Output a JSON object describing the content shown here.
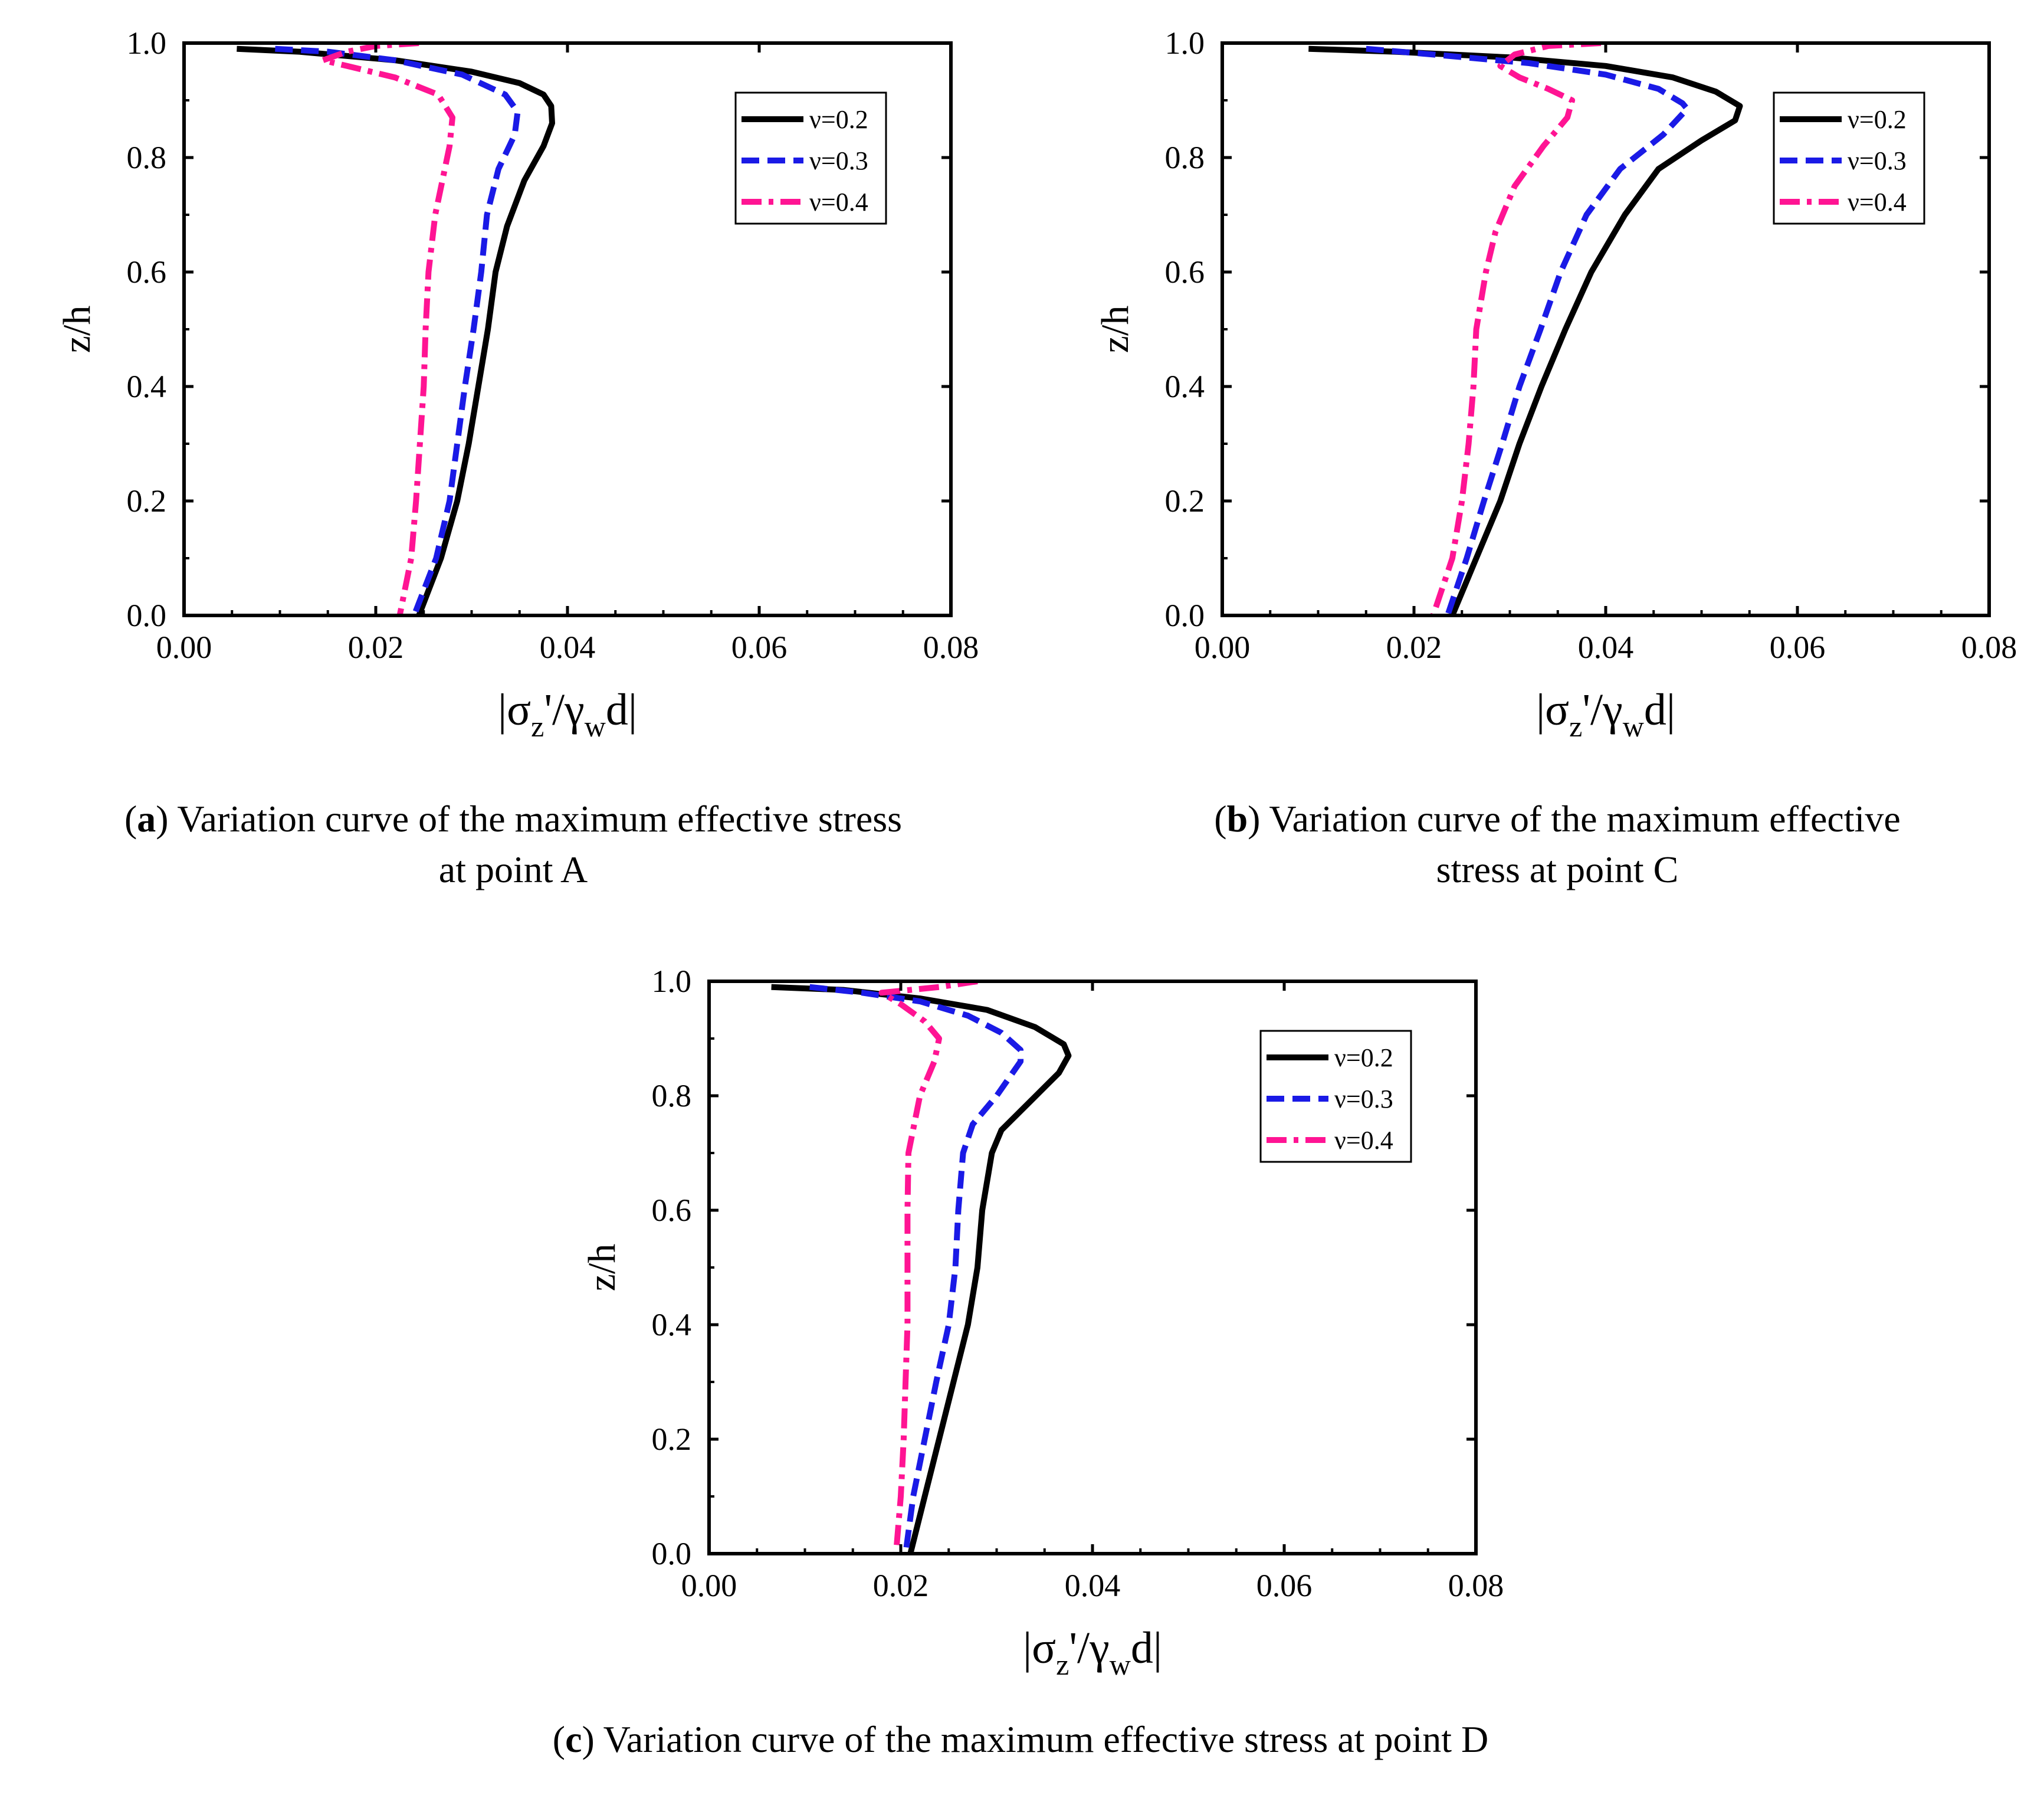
{
  "figure": {
    "captions": [
      {
        "letter": "a",
        "lines": [
          ") Variation curve of the maximum effective stress",
          "at point A"
        ]
      },
      {
        "letter": "b",
        "lines": [
          ") Variation curve of the maximum effective",
          "stress at point C"
        ]
      },
      {
        "letter": "c",
        "lines": [
          ") Variation curve of the maximum effective stress at point D"
        ]
      }
    ]
  },
  "colors": {
    "v02": "#000000",
    "v03": "#1a1ae6",
    "v04": "#ff1493"
  },
  "chart_data": [
    {
      "id": "a",
      "type": "line",
      "ylabel": "z/h",
      "xlabel": {
        "abs_bar": "|",
        "sigma": "σ",
        "sub_z": "z",
        "prime_slash": "'/",
        "gamma": "γ",
        "sub_w": "w",
        "d": "d"
      },
      "xlim": [
        0,
        0.08
      ],
      "ylim": [
        0,
        1.0
      ],
      "xticks": [
        "0.00",
        "0.02",
        "0.04",
        "0.06",
        "0.08"
      ],
      "yticks": [
        "0.0",
        "0.2",
        "0.4",
        "0.6",
        "0.8",
        "1.0"
      ],
      "legend_position": "top-right",
      "series": [
        {
          "name": "ν=0.2",
          "style": "solid",
          "points": [
            [
              0.0055,
              0.99
            ],
            [
              0.012,
              0.985
            ],
            [
              0.022,
              0.97
            ],
            [
              0.03,
              0.95
            ],
            [
              0.035,
              0.93
            ],
            [
              0.0375,
              0.91
            ],
            [
              0.0383,
              0.89
            ],
            [
              0.0384,
              0.86
            ],
            [
              0.0375,
              0.82
            ],
            [
              0.0355,
              0.76
            ],
            [
              0.0337,
              0.68
            ],
            [
              0.0325,
              0.6
            ],
            [
              0.0317,
              0.5
            ],
            [
              0.0307,
              0.4
            ],
            [
              0.0297,
              0.3
            ],
            [
              0.0285,
              0.2
            ],
            [
              0.0268,
              0.1
            ],
            [
              0.0245,
              0.0
            ]
          ]
        },
        {
          "name": "ν=0.3",
          "style": "dashed",
          "points": [
            [
              0.0095,
              0.99
            ],
            [
              0.015,
              0.985
            ],
            [
              0.022,
              0.97
            ],
            [
              0.029,
              0.945
            ],
            [
              0.0335,
              0.91
            ],
            [
              0.0348,
              0.88
            ],
            [
              0.0345,
              0.84
            ],
            [
              0.0328,
              0.78
            ],
            [
              0.0316,
              0.7
            ],
            [
              0.031,
              0.6
            ],
            [
              0.0302,
              0.5
            ],
            [
              0.0293,
              0.4
            ],
            [
              0.0285,
              0.3
            ],
            [
              0.0277,
              0.2
            ],
            [
              0.0263,
              0.1
            ],
            [
              0.024,
              0.0
            ]
          ]
        },
        {
          "name": "ν=0.4",
          "style": "dashdot",
          "points": [
            [
              0.0245,
              1.0
            ],
            [
              0.02,
              0.995
            ],
            [
              0.017,
              0.985
            ],
            [
              0.0145,
              0.97
            ],
            [
              0.017,
              0.96
            ],
            [
              0.022,
              0.94
            ],
            [
              0.0265,
              0.91
            ],
            [
              0.028,
              0.87
            ],
            [
              0.0277,
              0.82
            ],
            [
              0.0262,
              0.7
            ],
            [
              0.0255,
              0.6
            ],
            [
              0.0252,
              0.5
            ],
            [
              0.025,
              0.4
            ],
            [
              0.0246,
              0.3
            ],
            [
              0.0242,
              0.2
            ],
            [
              0.0237,
              0.1
            ],
            [
              0.0225,
              0.0
            ]
          ]
        }
      ]
    },
    {
      "id": "b",
      "type": "line",
      "ylabel": "z/h",
      "xlabel": {
        "abs_bar": "|",
        "sigma": "σ",
        "sub_z": "z",
        "prime_slash": "'/",
        "gamma": "γ",
        "sub_w": "w",
        "d": "d"
      },
      "xlim": [
        0,
        0.08
      ],
      "ylim": [
        0,
        1.0
      ],
      "xticks": [
        "0.00",
        "0.02",
        "0.04",
        "0.06",
        "0.08"
      ],
      "yticks": [
        "0.0",
        "0.2",
        "0.4",
        "0.6",
        "0.8",
        "1.0"
      ],
      "legend_position": "top-right",
      "series": [
        {
          "name": "ν=0.2",
          "style": "solid",
          "points": [
            [
              0.009,
              0.99
            ],
            [
              0.018,
              0.985
            ],
            [
              0.03,
              0.975
            ],
            [
              0.04,
              0.96
            ],
            [
              0.047,
              0.94
            ],
            [
              0.0515,
              0.915
            ],
            [
              0.054,
              0.89
            ],
            [
              0.0535,
              0.865
            ],
            [
              0.05,
              0.83
            ],
            [
              0.0455,
              0.78
            ],
            [
              0.042,
              0.7
            ],
            [
              0.0385,
              0.6
            ],
            [
              0.0358,
              0.5
            ],
            [
              0.0333,
              0.4
            ],
            [
              0.031,
              0.3
            ],
            [
              0.029,
              0.2
            ],
            [
              0.0265,
              0.1
            ],
            [
              0.024,
              0.0
            ]
          ]
        },
        {
          "name": "ν=0.3",
          "style": "dashed",
          "points": [
            [
              0.015,
              0.99
            ],
            [
              0.022,
              0.98
            ],
            [
              0.032,
              0.965
            ],
            [
              0.04,
              0.945
            ],
            [
              0.0455,
              0.92
            ],
            [
              0.048,
              0.895
            ],
            [
              0.0485,
              0.885
            ],
            [
              0.046,
              0.84
            ],
            [
              0.0415,
              0.78
            ],
            [
              0.038,
              0.7
            ],
            [
              0.0353,
              0.6
            ],
            [
              0.0332,
              0.5
            ],
            [
              0.031,
              0.4
            ],
            [
              0.0292,
              0.3
            ],
            [
              0.0273,
              0.2
            ],
            [
              0.0255,
              0.1
            ],
            [
              0.0235,
              0.0
            ]
          ]
        },
        {
          "name": "ν=0.4",
          "style": "dashdot",
          "points": [
            [
              0.0395,
              1.0
            ],
            [
              0.034,
              0.995
            ],
            [
              0.0305,
              0.98
            ],
            [
              0.029,
              0.96
            ],
            [
              0.031,
              0.94
            ],
            [
              0.034,
              0.92
            ],
            [
              0.0365,
              0.9
            ],
            [
              0.036,
              0.87
            ],
            [
              0.0335,
              0.82
            ],
            [
              0.0305,
              0.75
            ],
            [
              0.0285,
              0.67
            ],
            [
              0.0275,
              0.6
            ],
            [
              0.0265,
              0.5
            ],
            [
              0.0262,
              0.4
            ],
            [
              0.0257,
              0.3
            ],
            [
              0.025,
              0.2
            ],
            [
              0.024,
              0.1
            ],
            [
              0.022,
              0.0
            ]
          ]
        }
      ]
    },
    {
      "id": "c",
      "type": "line",
      "ylabel": "z/h",
      "xlabel": {
        "abs_bar": "|",
        "sigma": "σ",
        "sub_z": "z",
        "prime_slash": "'/",
        "gamma": "γ",
        "sub_w": "w",
        "d": "d"
      },
      "xlim": [
        0,
        0.08
      ],
      "ylim": [
        0,
        1.0
      ],
      "xticks": [
        "0.00",
        "0.02",
        "0.04",
        "0.06",
        "0.08"
      ],
      "yticks": [
        "0.0",
        "0.2",
        "0.4",
        "0.6",
        "0.8",
        "1.0"
      ],
      "legend_position": "top-right",
      "series": [
        {
          "name": "ν=0.2",
          "style": "solid",
          "points": [
            [
              0.0065,
              0.99
            ],
            [
              0.014,
              0.985
            ],
            [
              0.022,
              0.97
            ],
            [
              0.029,
              0.95
            ],
            [
              0.034,
              0.92
            ],
            [
              0.037,
              0.89
            ],
            [
              0.0375,
              0.87
            ],
            [
              0.0365,
              0.84
            ],
            [
              0.0335,
              0.79
            ],
            [
              0.0305,
              0.74
            ],
            [
              0.0295,
              0.7
            ],
            [
              0.0285,
              0.6
            ],
            [
              0.028,
              0.5
            ],
            [
              0.027,
              0.4
            ],
            [
              0.0255,
              0.3
            ],
            [
              0.024,
              0.2
            ],
            [
              0.0225,
              0.1
            ],
            [
              0.021,
              0.0
            ]
          ]
        },
        {
          "name": "ν=0.3",
          "style": "dashed",
          "points": [
            [
              0.0105,
              0.99
            ],
            [
              0.016,
              0.98
            ],
            [
              0.022,
              0.965
            ],
            [
              0.027,
              0.94
            ],
            [
              0.0305,
              0.91
            ],
            [
              0.0325,
              0.88
            ],
            [
              0.0325,
              0.86
            ],
            [
              0.03,
              0.8
            ],
            [
              0.0275,
              0.75
            ],
            [
              0.0265,
              0.7
            ],
            [
              0.026,
              0.6
            ],
            [
              0.0257,
              0.5
            ],
            [
              0.025,
              0.4
            ],
            [
              0.0237,
              0.3
            ],
            [
              0.0225,
              0.2
            ],
            [
              0.0213,
              0.1
            ],
            [
              0.0205,
              0.0
            ]
          ]
        },
        {
          "name": "ν=0.4",
          "style": "dashdot",
          "points": [
            [
              0.028,
              1.0
            ],
            [
              0.024,
              0.99
            ],
            [
              0.021,
              0.985
            ],
            [
              0.018,
              0.98
            ],
            [
              0.02,
              0.96
            ],
            [
              0.0225,
              0.93
            ],
            [
              0.024,
              0.9
            ],
            [
              0.0235,
              0.86
            ],
            [
              0.022,
              0.8
            ],
            [
              0.0208,
              0.7
            ],
            [
              0.0207,
              0.6
            ],
            [
              0.0207,
              0.5
            ],
            [
              0.0207,
              0.4
            ],
            [
              0.0205,
              0.3
            ],
            [
              0.0203,
              0.2
            ],
            [
              0.02,
              0.1
            ],
            [
              0.0195,
              0.0
            ]
          ]
        }
      ]
    }
  ]
}
